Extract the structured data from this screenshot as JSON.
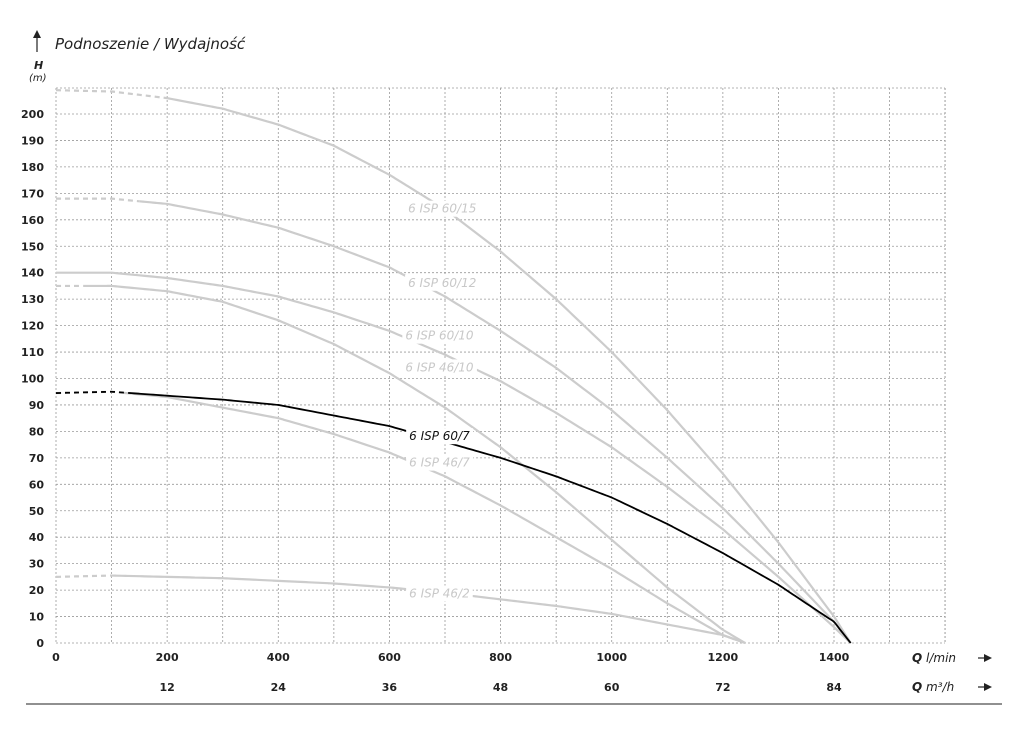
{
  "chart_data": {
    "type": "line",
    "title": "Podnoszenie / Wydajność",
    "ylabel": "H",
    "yunit": "(m)",
    "xlabel": "Q",
    "xunit": "l/min",
    "x2label": "Q",
    "x2unit": "m³/h",
    "xlim": [
      0,
      1600
    ],
    "ylim": [
      0,
      210
    ],
    "y_ticks": [
      0,
      10,
      20,
      30,
      40,
      50,
      60,
      70,
      80,
      90,
      100,
      110,
      120,
      130,
      140,
      150,
      160,
      170,
      180,
      190,
      200
    ],
    "x_ticks": [
      0,
      200,
      400,
      600,
      800,
      1000,
      1200,
      1400
    ],
    "x2_ticks": [
      {
        "q": 200,
        "label": "12"
      },
      {
        "q": 400,
        "label": "24"
      },
      {
        "q": 600,
        "label": "36"
      },
      {
        "q": 800,
        "label": "48"
      },
      {
        "q": 1000,
        "label": "60"
      },
      {
        "q": 1200,
        "label": "72"
      },
      {
        "q": 1400,
        "label": "84"
      }
    ],
    "grid": true,
    "colors": {
      "highlight": "#000000",
      "other": "#cccccc",
      "grid": "#9a9a9a"
    },
    "series": [
      {
        "name": "6 ISP 60/15",
        "highlight": false,
        "dashed_until": 200,
        "x": [
          0,
          100,
          200,
          300,
          400,
          500,
          600,
          700,
          800,
          900,
          1000,
          1100,
          1200,
          1300,
          1400,
          1430
        ],
        "y": [
          209,
          208.5,
          206,
          202,
          196,
          188,
          177,
          164,
          148,
          130,
          110,
          88,
          64,
          38,
          10,
          0
        ]
      },
      {
        "name": "6 ISP 60/12",
        "highlight": false,
        "dashed_until": 150,
        "x": [
          0,
          100,
          200,
          300,
          400,
          500,
          600,
          700,
          800,
          900,
          1000,
          1100,
          1200,
          1300,
          1400,
          1430
        ],
        "y": [
          168,
          168,
          166,
          162,
          157,
          150,
          142,
          131,
          118,
          104,
          88,
          70,
          51,
          30,
          8,
          0
        ]
      },
      {
        "name": "6 ISP 60/10",
        "highlight": false,
        "dashed_until": 0,
        "x": [
          0,
          100,
          200,
          300,
          400,
          500,
          600,
          700,
          800,
          900,
          1000,
          1100,
          1200,
          1300,
          1400,
          1430
        ],
        "y": [
          140,
          140,
          138,
          135,
          131,
          125,
          118,
          109,
          99,
          87,
          74,
          59,
          43,
          25,
          6,
          0
        ]
      },
      {
        "name": "6 ISP 46/10",
        "highlight": false,
        "dashed_until": 50,
        "x": [
          0,
          100,
          200,
          300,
          400,
          500,
          600,
          700,
          800,
          900,
          1000,
          1100,
          1200,
          1240
        ],
        "y": [
          135,
          135,
          133,
          129,
          122,
          113,
          102,
          89,
          74,
          57,
          39,
          21,
          5,
          0
        ]
      },
      {
        "name": "6 ISP 60/7",
        "highlight": true,
        "dashed_until": 130,
        "x": [
          0,
          100,
          200,
          300,
          400,
          500,
          600,
          700,
          800,
          900,
          1000,
          1100,
          1200,
          1300,
          1400,
          1430
        ],
        "y": [
          94.5,
          95,
          93.5,
          92,
          90,
          86,
          82,
          76,
          70,
          63,
          55,
          45,
          34,
          22,
          8,
          0
        ]
      },
      {
        "name": "6 ISP 46/7",
        "highlight": false,
        "dashed_until": 120,
        "x": [
          0,
          100,
          200,
          300,
          400,
          500,
          600,
          700,
          800,
          900,
          1000,
          1100,
          1200,
          1240
        ],
        "y": [
          94.5,
          95,
          93,
          89,
          85,
          79,
          72,
          63,
          52,
          40,
          28,
          15,
          3,
          0
        ]
      },
      {
        "name": "6 ISP 46/2",
        "highlight": false,
        "dashed_until": 100,
        "x": [
          0,
          100,
          200,
          300,
          400,
          500,
          600,
          700,
          800,
          900,
          1000,
          1100,
          1200,
          1240
        ],
        "y": [
          25,
          25.5,
          25,
          24.5,
          23.5,
          22.5,
          21,
          19,
          16.5,
          14,
          11,
          7,
          3,
          0
        ]
      }
    ],
    "labels": [
      {
        "series": "6 ISP 60/15",
        "text": "6 ISP 60/15",
        "x": 695,
        "y": 164
      },
      {
        "series": "6 ISP 60/12",
        "text": "6 ISP 60/12",
        "x": 695,
        "y": 136
      },
      {
        "series": "6 ISP 60/10",
        "text": "6 ISP 60/10",
        "x": 690,
        "y": 116
      },
      {
        "series": "6 ISP 46/10",
        "text": "6 ISP 46/10",
        "x": 690,
        "y": 104
      },
      {
        "series": "6 ISP 60/7",
        "text": "6 ISP 60/7",
        "x": 690,
        "y": 78
      },
      {
        "series": "6 ISP 46/7",
        "text": "6 ISP 46/7",
        "x": 690,
        "y": 68
      },
      {
        "series": "6 ISP 46/2",
        "text": "6 ISP 46/2",
        "x": 690,
        "y": 18.5
      }
    ]
  }
}
